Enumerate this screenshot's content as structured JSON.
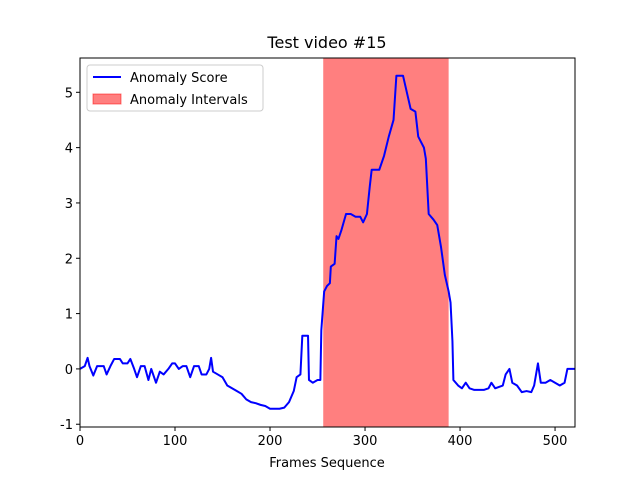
{
  "chart_data": {
    "type": "line",
    "title": "Test video #15",
    "x_label": "Frames Sequence",
    "x": [
      0,
      5,
      8,
      10,
      14,
      18,
      25,
      28,
      32,
      36,
      42,
      45,
      50,
      53,
      57,
      60,
      64,
      68,
      72,
      75,
      80,
      84,
      88,
      93,
      97,
      100,
      104,
      108,
      112,
      116,
      120,
      125,
      128,
      133,
      136,
      138,
      140,
      145,
      150,
      155,
      160,
      165,
      170,
      175,
      180,
      185,
      190,
      195,
      200,
      205,
      210,
      215,
      220,
      225,
      228,
      232,
      234,
      240,
      241,
      245,
      250,
      253,
      254,
      257,
      260,
      263,
      264,
      268,
      270,
      272,
      275,
      280,
      285,
      290,
      295,
      298,
      302,
      305,
      307,
      315,
      320,
      325,
      330,
      333,
      340,
      344,
      348,
      353,
      356,
      362,
      364,
      367,
      372,
      376,
      380,
      384,
      388,
      390,
      392,
      393,
      398,
      402,
      406,
      410,
      415,
      420,
      425,
      430,
      433,
      437,
      445,
      448,
      452,
      455,
      460,
      465,
      470,
      475,
      478,
      482,
      485,
      490,
      495,
      500,
      505,
      510,
      513,
      521
    ],
    "series": [
      {
        "name": "Anomaly Score",
        "color": "#0000ff",
        "values": [
          0,
          0.05,
          0.2,
          0.05,
          -0.12,
          0.05,
          0.05,
          -0.1,
          0.05,
          0.18,
          0.18,
          0.1,
          0.1,
          0.18,
          0,
          -0.15,
          0.05,
          0.05,
          -0.2,
          0,
          -0.25,
          -0.05,
          -0.1,
          0,
          0.1,
          0.1,
          0,
          0.05,
          0.05,
          -0.15,
          0.05,
          0.05,
          -0.1,
          -0.1,
          0,
          0.2,
          -0.05,
          -0.1,
          -0.15,
          -0.3,
          -0.35,
          -0.4,
          -0.45,
          -0.55,
          -0.6,
          -0.62,
          -0.65,
          -0.67,
          -0.72,
          -0.72,
          -0.72,
          -0.7,
          -0.6,
          -0.4,
          -0.15,
          -0.1,
          0.6,
          0.6,
          -0.2,
          -0.25,
          -0.2,
          -0.2,
          0.7,
          1.4,
          1.5,
          1.55,
          1.85,
          1.9,
          2.4,
          2.35,
          2.5,
          2.8,
          2.8,
          2.75,
          2.75,
          2.65,
          2.8,
          3.3,
          3.6,
          3.6,
          3.85,
          4.2,
          4.5,
          5.3,
          5.3,
          5,
          4.7,
          4.65,
          4.2,
          4,
          3.8,
          2.8,
          2.7,
          2.6,
          2.2,
          1.7,
          1.4,
          1.2,
          0.5,
          -0.2,
          -0.3,
          -0.35,
          -0.25,
          -0.35,
          -0.38,
          -0.38,
          -0.38,
          -0.35,
          -0.25,
          -0.35,
          -0.3,
          -0.1,
          0,
          -0.25,
          -0.3,
          -0.42,
          -0.4,
          -0.42,
          -0.3,
          0.1,
          -0.25,
          -0.25,
          -0.2,
          -0.25,
          -0.3,
          -0.25,
          0,
          0
        ]
      }
    ],
    "spans": [
      {
        "name": "Anomaly Intervals",
        "color": "#ff0000",
        "opacity": 0.5,
        "start": 256,
        "end": 388
      }
    ],
    "xlim": [
      0,
      521
    ],
    "ylim": [
      -1.05,
      5.62
    ],
    "xticks": [
      0,
      100,
      200,
      300,
      400,
      500
    ],
    "yticks": [
      -1,
      0,
      1,
      2,
      3,
      4,
      5
    ],
    "legend": "upper left"
  }
}
